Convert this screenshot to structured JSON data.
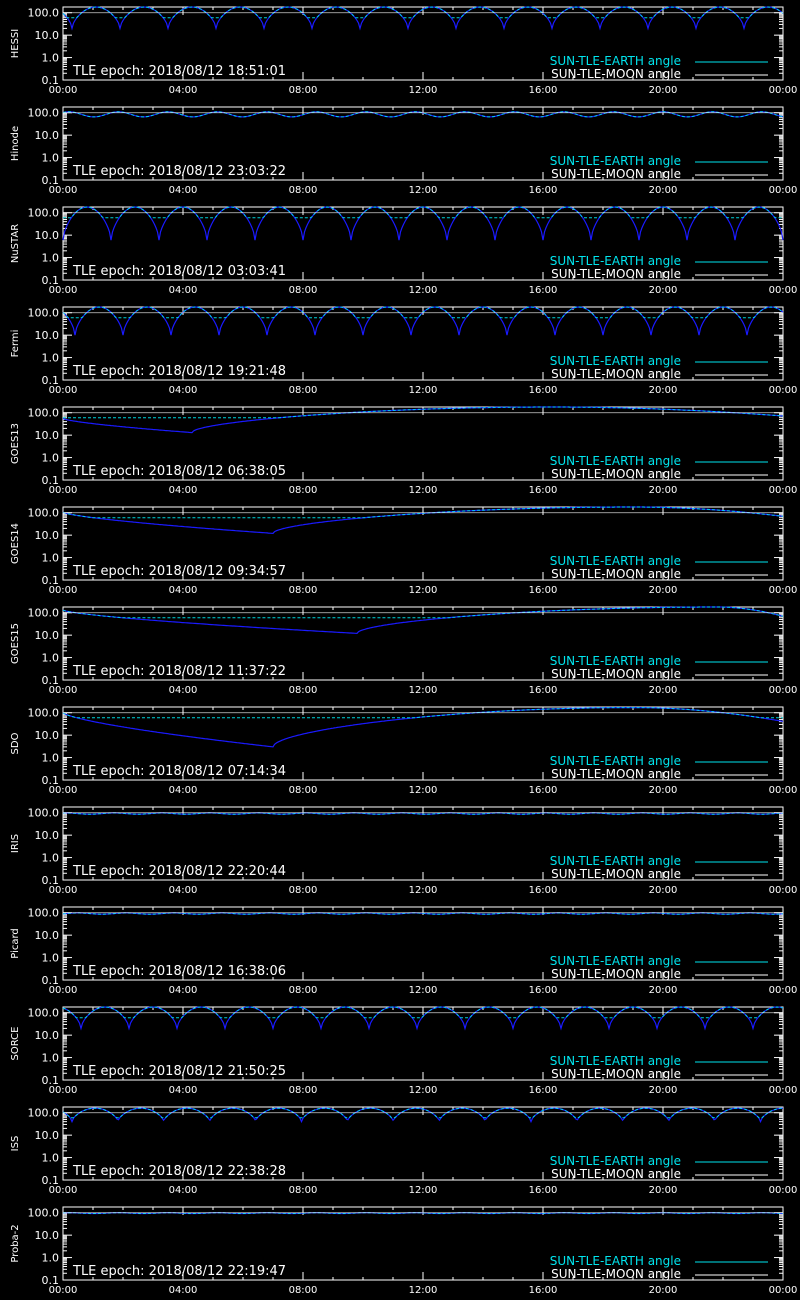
{
  "colors": {
    "background": "#000000",
    "axes": "#ffffff",
    "earth": "#00e5ee",
    "moon": "#ffffff",
    "dips": "#1a1aff"
  },
  "chart_data": [
    {
      "type": "line",
      "ylabel": "HESSI",
      "epoch": "TLE epoch: 2018/08/12 18:51:01",
      "pattern": {
        "kind": "periodic",
        "period_h": 1.6,
        "phase_h": 0.3,
        "top": 180,
        "bottom": 20,
        "shape": "arch"
      }
    },
    {
      "type": "line",
      "ylabel": "Hinode",
      "epoch": "TLE epoch: 2018/08/12 23:03:22",
      "pattern": {
        "kind": "periodic",
        "period_h": 1.65,
        "phase_h": 0.2,
        "top": 110,
        "bottom": 65,
        "shape": "wave"
      }
    },
    {
      "type": "line",
      "ylabel": "NuSTAR",
      "epoch": "TLE epoch: 2018/08/12 03:03:41",
      "pattern": {
        "kind": "periodic",
        "period_h": 1.6,
        "phase_h": 0.0,
        "top": 180,
        "bottom": 6,
        "shape": "arch"
      }
    },
    {
      "type": "line",
      "ylabel": "Fermi",
      "epoch": "TLE epoch: 2018/08/12 19:21:48",
      "pattern": {
        "kind": "periodic",
        "period_h": 1.6,
        "phase_h": 0.4,
        "top": 180,
        "bottom": 10,
        "shape": "arch"
      }
    },
    {
      "type": "line",
      "ylabel": "GOES13",
      "epoch": "TLE epoch: 2018/08/12 06:38:05",
      "pattern": {
        "kind": "geo",
        "min_h": 4.3,
        "min_val": 13,
        "max_val": 180,
        "start_val": 55
      }
    },
    {
      "type": "line",
      "ylabel": "GOES14",
      "epoch": "TLE epoch: 2018/08/12 09:34:57",
      "pattern": {
        "kind": "geo",
        "min_h": 7.0,
        "min_val": 12,
        "max_val": 180,
        "start_val": 105
      }
    },
    {
      "type": "line",
      "ylabel": "GOES15",
      "epoch": "TLE epoch: 2018/08/12 11:37:22",
      "pattern": {
        "kind": "geo",
        "min_h": 9.8,
        "min_val": 12,
        "max_val": 180,
        "start_val": 130
      }
    },
    {
      "type": "line",
      "ylabel": "SDO",
      "epoch": "TLE epoch: 2018/08/12 07:14:34",
      "pattern": {
        "kind": "geo",
        "min_h": 7.0,
        "min_val": 3,
        "max_val": 170,
        "start_val": 100
      }
    },
    {
      "type": "line",
      "ylabel": "IRIS",
      "epoch": "TLE epoch: 2018/08/12 22:20:44",
      "pattern": {
        "kind": "periodic",
        "period_h": 1.6,
        "phase_h": 0.1,
        "top": 98,
        "bottom": 86,
        "shape": "wave"
      }
    },
    {
      "type": "line",
      "ylabel": "Picard",
      "epoch": "TLE epoch: 2018/08/12 16:38:06",
      "pattern": {
        "kind": "periodic",
        "period_h": 1.6,
        "phase_h": 0.5,
        "top": 98,
        "bottom": 86,
        "shape": "wave"
      }
    },
    {
      "type": "line",
      "ylabel": "SORCE",
      "epoch": "TLE epoch: 2018/08/12 21:50:25",
      "pattern": {
        "kind": "periodic",
        "period_h": 1.6,
        "phase_h": 0.6,
        "top": 180,
        "bottom": 20,
        "shape": "arch"
      }
    },
    {
      "type": "line",
      "ylabel": "ISS",
      "epoch": "TLE epoch: 2018/08/12 22:38:28",
      "pattern": {
        "kind": "periodic",
        "period_h": 1.53,
        "phase_h": 0.3,
        "top": 160,
        "bottom": 40,
        "shape": "arch"
      }
    },
    {
      "type": "line",
      "ylabel": "Proba-2",
      "epoch": "TLE epoch: 2018/08/12 22:19:47",
      "pattern": {
        "kind": "periodic",
        "period_h": 1.65,
        "phase_h": 0.2,
        "top": 100,
        "bottom": 92,
        "shape": "wave"
      }
    }
  ],
  "shared": {
    "x_ticks": [
      "00:00",
      "04:00",
      "08:00",
      "12:00",
      "16:00",
      "20:00",
      "00:00"
    ],
    "xlim_hours": [
      0,
      24
    ],
    "y_ticks": [
      "0.1",
      "1.0",
      "10.0",
      "100.0"
    ],
    "ylim": [
      0.1,
      180
    ],
    "yscale": "log",
    "legend": [
      {
        "name": "SUN-TLE-EARTH angle",
        "color": "#00e5ee"
      },
      {
        "name": "SUN-TLE-MOON angle",
        "color": "#ffffff"
      }
    ]
  }
}
